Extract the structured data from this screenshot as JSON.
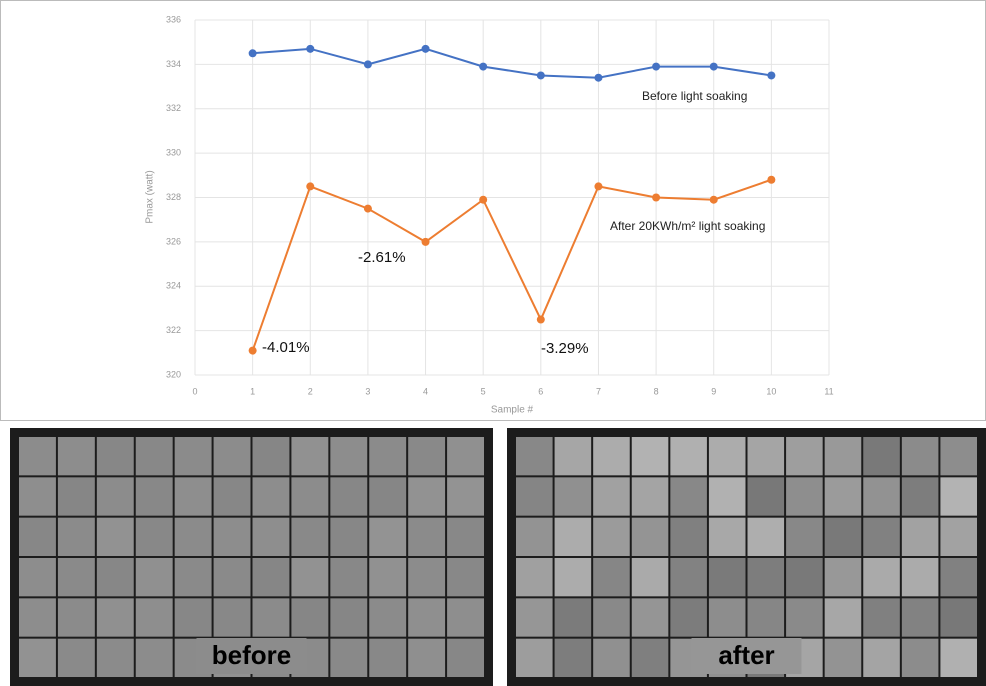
{
  "chart_data": {
    "type": "line",
    "y_label": "Pmax (watt)",
    "x_label": "Sample #",
    "x": [
      1,
      2,
      3,
      4,
      5,
      6,
      7,
      8,
      9,
      10
    ],
    "series": [
      {
        "name": "Before light soaking",
        "color": "#4472c4",
        "values": [
          334.5,
          334.7,
          334.0,
          334.7,
          333.9,
          333.5,
          333.4,
          333.9,
          333.9,
          333.5
        ]
      },
      {
        "name": "After 20KWh/m² light soaking",
        "color": "#ed7d31",
        "values": [
          321.1,
          328.5,
          327.5,
          326.0,
          327.9,
          322.5,
          328.5,
          328.0,
          327.9,
          328.8
        ]
      }
    ],
    "annotations": [
      "-4.01%",
      "-2.61%",
      "-3.29%"
    ],
    "xlim": [
      0,
      11
    ],
    "xticks": [
      0,
      1,
      2,
      3,
      4,
      5,
      6,
      7,
      8,
      9,
      10,
      11
    ],
    "ylim": [
      320,
      336
    ],
    "yticks": [
      320,
      322,
      324,
      326,
      328,
      330,
      332,
      334,
      336
    ],
    "grid": true
  },
  "images": [
    {
      "label": "before"
    },
    {
      "label": "after"
    }
  ]
}
